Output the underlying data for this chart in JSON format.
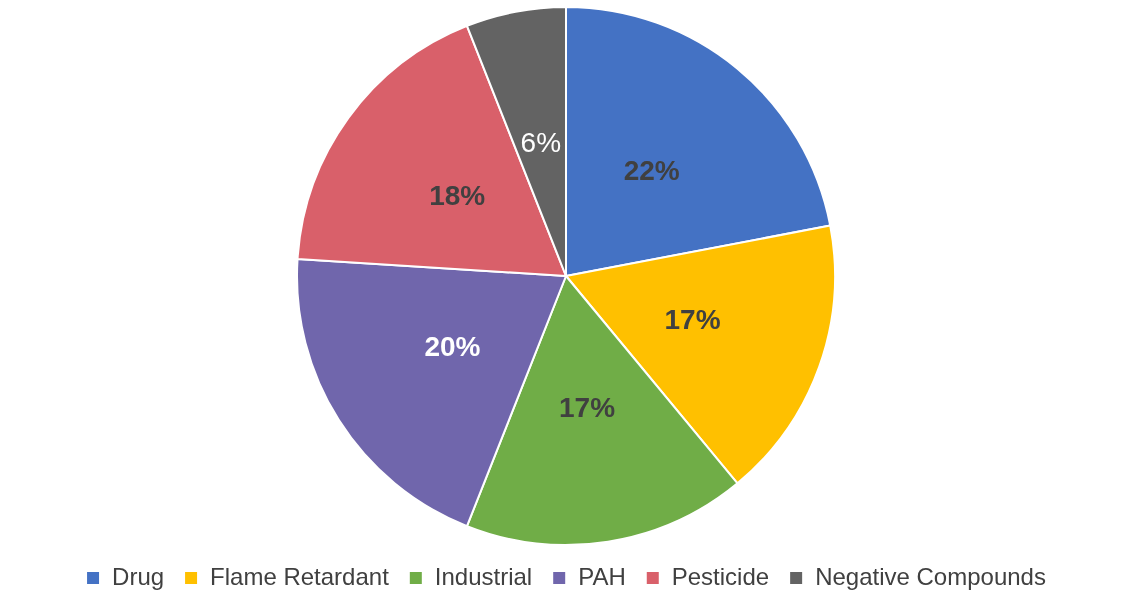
{
  "chart_data": {
    "type": "pie",
    "categories": [
      "Drug",
      "Flame Retardant",
      "Industrial",
      "PAH",
      "Pesticide",
      "Negative Compounds"
    ],
    "values": [
      22,
      17,
      17,
      20,
      18,
      6
    ],
    "colors": [
      "#4472c4",
      "#ffc000",
      "#70ad47",
      "#7066ac",
      "#d9606a",
      "#636363"
    ],
    "value_labels": [
      "22%",
      "17%",
      "17%",
      "20%",
      "18%",
      "6%"
    ],
    "legend": "bottom"
  }
}
